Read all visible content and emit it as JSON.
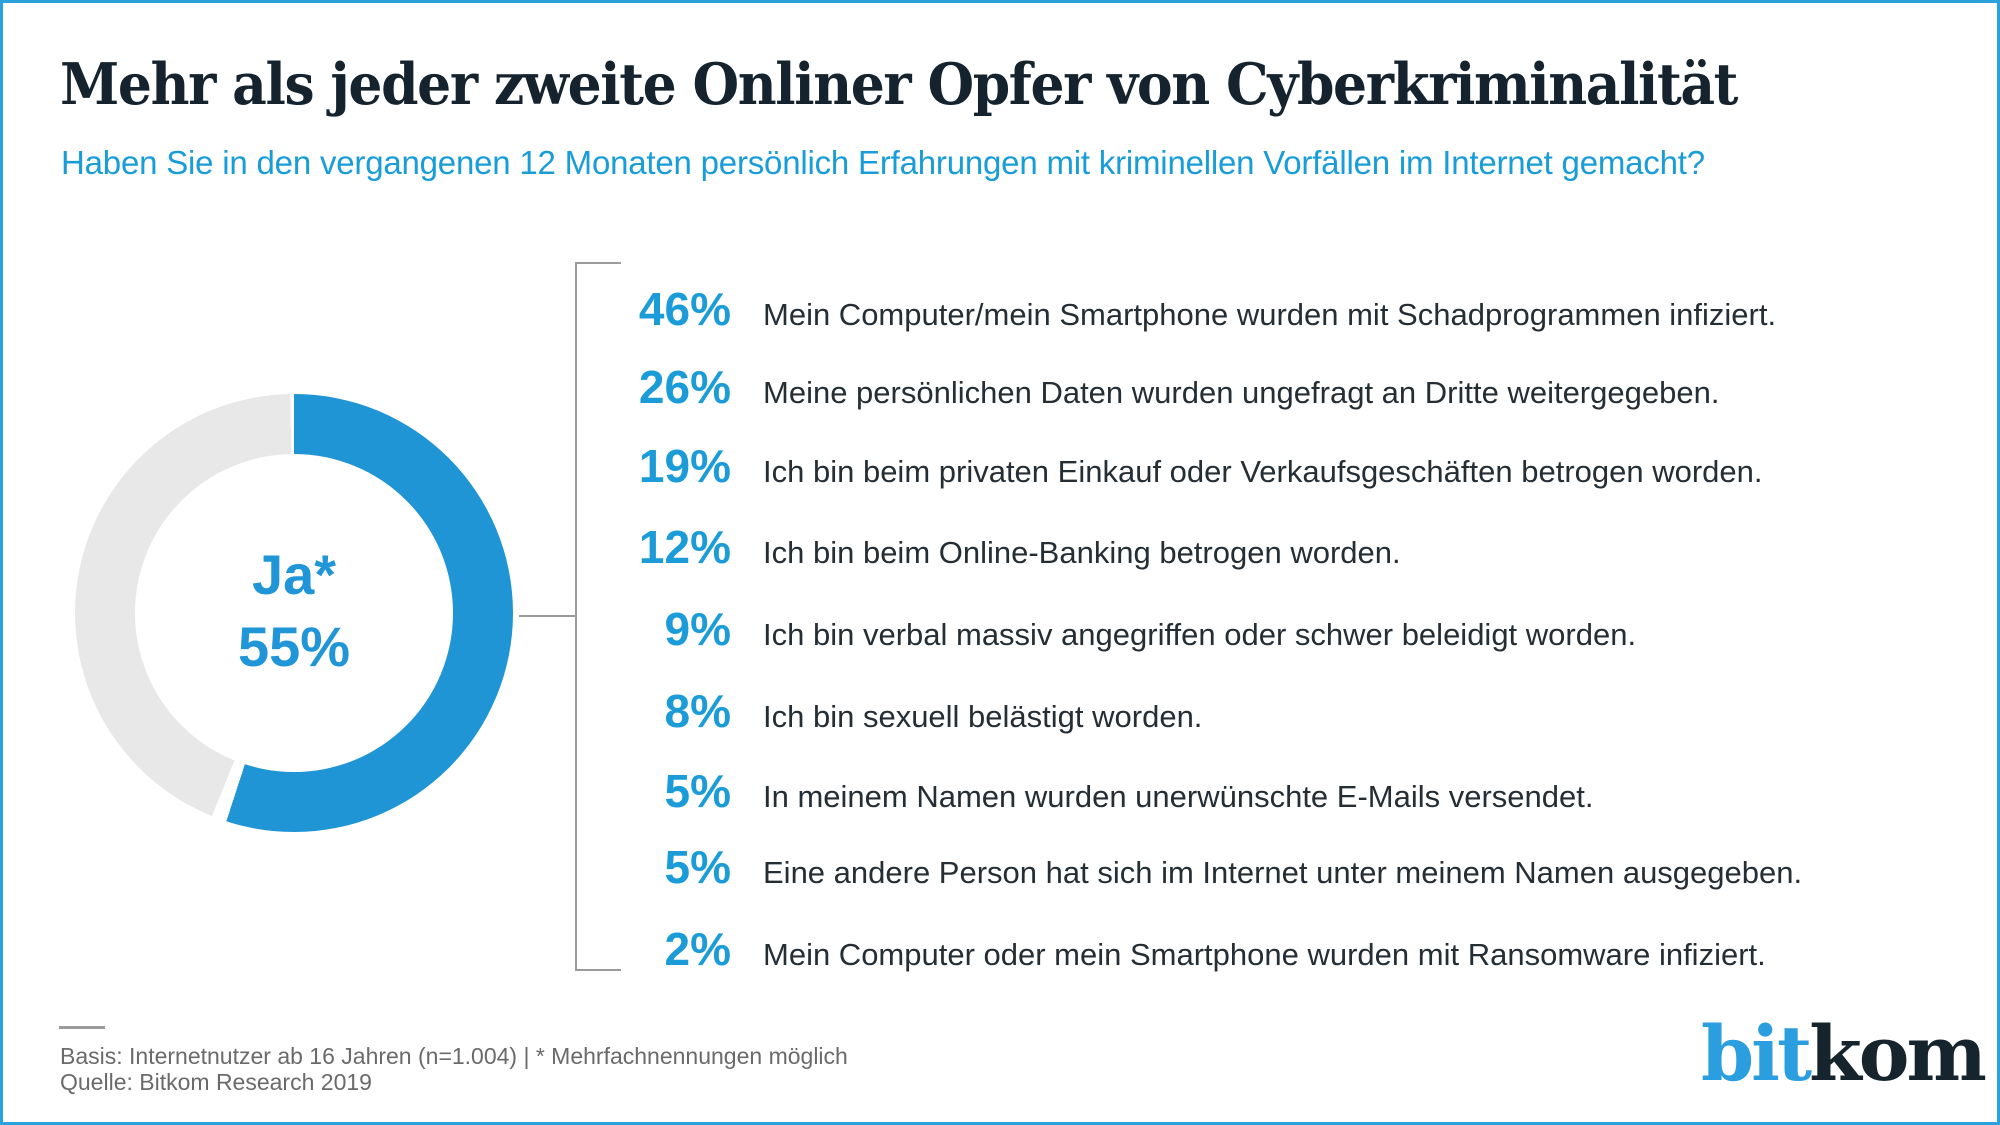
{
  "header": {
    "title": "Mehr als jeder zweite Onliner Opfer von Cyberkriminalität",
    "subtitle": "Haben Sie in den vergangenen 12 Monaten persönlich Erfahrungen mit kriminellen Vorfällen im Internet gemacht?"
  },
  "donut": {
    "center_line1": "Ja*",
    "center_line2": "55%",
    "value_pct": 55,
    "remainder_pct": 45
  },
  "rows": [
    {
      "pct": "46%",
      "text": "Mein Computer/mein Smartphone wurden mit Schadprogrammen infiziert."
    },
    {
      "pct": "26%",
      "text": "Meine persönlichen Daten wurden ungefragt an Dritte weitergegeben."
    },
    {
      "pct": "19%",
      "text": "Ich bin beim privaten Einkauf oder Verkaufsgeschäften betrogen worden."
    },
    {
      "pct": "12%",
      "text": "Ich bin beim Online-Banking betrogen worden."
    },
    {
      "pct": "9%",
      "text": "Ich bin verbal massiv angegriffen oder schwer beleidigt worden."
    },
    {
      "pct": "8%",
      "text": "Ich bin sexuell belästigt worden."
    },
    {
      "pct": "5%",
      "text": "In meinem Namen wurden unerwünschte E-Mails versendet."
    },
    {
      "pct": "5%",
      "text": "Eine andere Person hat sich im Internet unter meinem Namen ausgegeben."
    },
    {
      "pct": "2%",
      "text": "Mein Computer oder mein Smartphone wurden mit Ransomware infiziert."
    }
  ],
  "footer": {
    "basis": "Basis: Internetnutzer ab 16 Jahren (n=1.004) | * Mehrfachnennungen möglich",
    "quelle": "Quelle: Bitkom Research 2019"
  },
  "logo": {
    "part1": "bit",
    "part2": "kom"
  },
  "colors": {
    "brand_blue": "#1b9cd9",
    "donut_blue": "#2095d5",
    "donut_gray": "#e8e8e8",
    "title_navy": "#14232e",
    "body_text": "#252e35",
    "footnote_gray": "#6a6a6a",
    "line_gray": "#9b9b9b",
    "border_blue": "#2ba2dc",
    "logo_blue": "#2b9edf",
    "logo_dark": "#16242e"
  },
  "chart_data": {
    "type": "pie",
    "subtype": "donut",
    "title": "Mehr als jeder zweite Onliner Opfer von Cyberkriminalität",
    "question": "Haben Sie in den vergangenen 12 Monaten persönlich Erfahrungen mit kriminellen Vorfällen im Internet gemacht?",
    "donut_slices": [
      {
        "label": "Ja*",
        "value": 55
      },
      {
        "label": "Rest",
        "value": 45
      }
    ],
    "donut_start_angle_deg": 0,
    "donut_direction": "clockwise",
    "categories": [
      "Mein Computer/mein Smartphone wurden mit Schadprogrammen infiziert.",
      "Meine persönlichen Daten wurden ungefragt an Dritte weitergegeben.",
      "Ich bin beim privaten Einkauf oder Verkaufsgeschäften betrogen worden.",
      "Ich bin beim Online-Banking betrogen worden.",
      "Ich bin verbal massiv angegriffen oder schwer beleidigt worden.",
      "Ich bin sexuell belästigt worden.",
      "In meinem Namen wurden unerwünschte E-Mails versendet.",
      "Eine andere Person hat sich im Internet unter meinem Namen ausgegeben.",
      "Mein Computer oder mein Smartphone wurden mit Ransomware infiziert."
    ],
    "values": [
      46,
      26,
      19,
      12,
      9,
      8,
      5,
      5,
      2
    ],
    "unit": "%",
    "legend_position": "none",
    "grid": false,
    "source": "Quelle: Bitkom Research 2019",
    "basis": "Basis: Internetnutzer ab 16 Jahren (n=1.004) | * Mehrfachnennungen möglich"
  }
}
